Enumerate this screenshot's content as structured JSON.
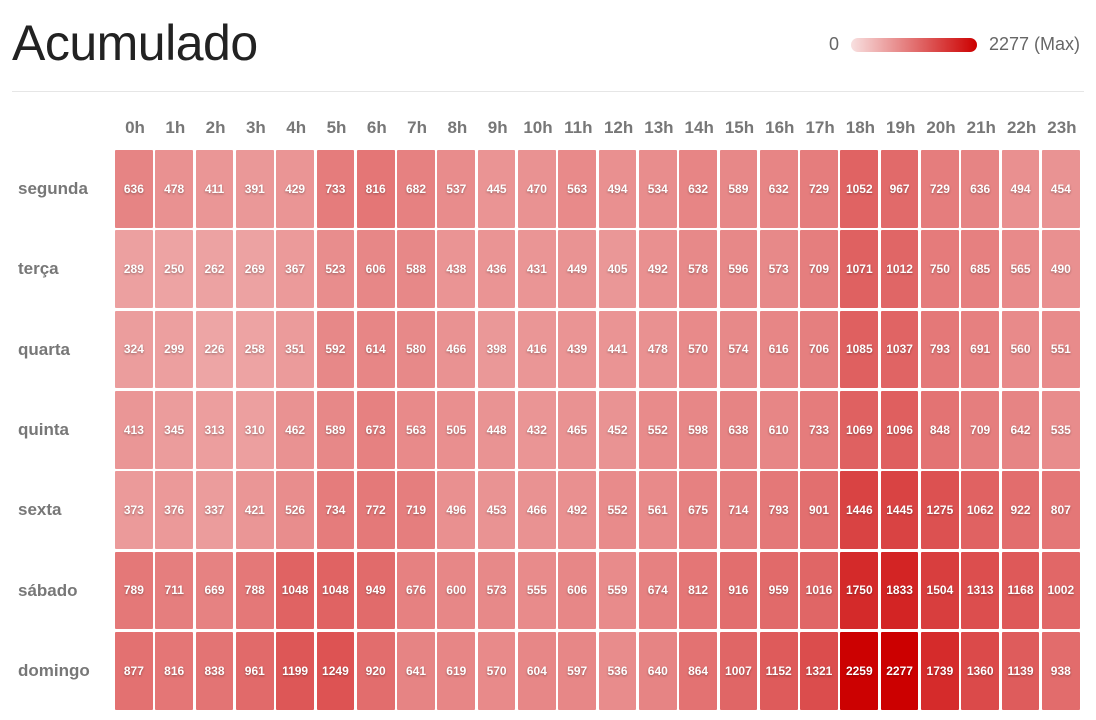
{
  "chart_data": {
    "type": "heatmap",
    "title": "Acumulado",
    "legend": {
      "min_label": "0",
      "max_label": "2277 (Max)",
      "min": 0,
      "max": 2277,
      "placement": "top-right"
    },
    "colors": {
      "low": "#ffffff",
      "high": "#cc0000"
    },
    "columns": [
      "0h",
      "1h",
      "2h",
      "3h",
      "4h",
      "5h",
      "6h",
      "7h",
      "8h",
      "9h",
      "10h",
      "11h",
      "12h",
      "13h",
      "14h",
      "15h",
      "16h",
      "17h",
      "18h",
      "19h",
      "20h",
      "21h",
      "22h",
      "23h"
    ],
    "rows": [
      "segunda",
      "terça",
      "quarta",
      "quinta",
      "sexta",
      "sábado",
      "domingo"
    ],
    "values": [
      [
        636,
        478,
        411,
        391,
        429,
        733,
        816,
        682,
        537,
        445,
        470,
        563,
        494,
        534,
        632,
        589,
        632,
        729,
        1052,
        967,
        729,
        636,
        494,
        454
      ],
      [
        289,
        250,
        262,
        269,
        367,
        523,
        606,
        588,
        438,
        436,
        431,
        449,
        405,
        492,
        578,
        596,
        573,
        709,
        1071,
        1012,
        750,
        685,
        565,
        490
      ],
      [
        324,
        299,
        226,
        258,
        351,
        592,
        614,
        580,
        466,
        398,
        416,
        439,
        441,
        478,
        570,
        574,
        616,
        706,
        1085,
        1037,
        793,
        691,
        560,
        551
      ],
      [
        413,
        345,
        313,
        310,
        462,
        589,
        673,
        563,
        505,
        448,
        432,
        465,
        452,
        552,
        598,
        638,
        610,
        733,
        1069,
        1096,
        848,
        709,
        642,
        535
      ],
      [
        373,
        376,
        337,
        421,
        526,
        734,
        772,
        719,
        496,
        453,
        466,
        492,
        552,
        561,
        675,
        714,
        793,
        901,
        1446,
        1445,
        1275,
        1062,
        922,
        807
      ],
      [
        789,
        711,
        669,
        788,
        1048,
        1048,
        949,
        676,
        600,
        573,
        555,
        606,
        559,
        674,
        812,
        916,
        959,
        1016,
        1750,
        1833,
        1504,
        1313,
        1168,
        1002
      ],
      [
        877,
        816,
        838,
        961,
        1199,
        1249,
        920,
        641,
        619,
        570,
        604,
        597,
        536,
        640,
        864,
        1007,
        1152,
        1321,
        2259,
        2277,
        1739,
        1360,
        1139,
        938
      ]
    ]
  }
}
